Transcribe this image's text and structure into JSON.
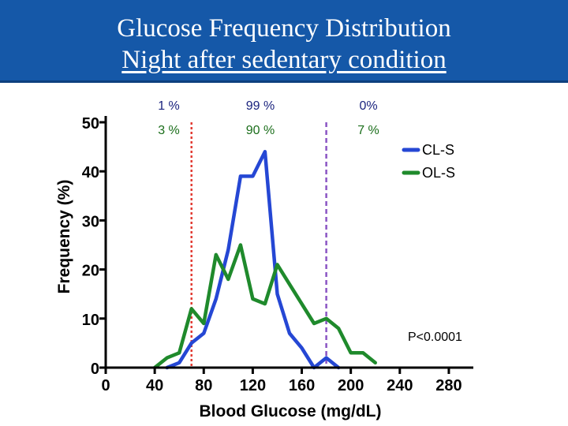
{
  "header": {
    "title": "Glucose Frequency Distribution",
    "subtitle": "Night after sedentary condition"
  },
  "colors": {
    "banner": "#1558a8",
    "cl_s": "#2547d4",
    "ol_s": "#1f8a2c",
    "threshold_low": "#e23b33",
    "threshold_high": "#8a55c4",
    "cl_s_pct_text": "#1a237e",
    "ol_s_pct_text": "#1b6e1b"
  },
  "chart_data": {
    "type": "line",
    "title": "",
    "xlabel": "Blood Glucose (mg/dL)",
    "ylabel": "Frequency (%)",
    "xlim": [
      0,
      300
    ],
    "ylim": [
      0,
      50
    ],
    "xticks": [
      "0",
      "40",
      "80",
      "120",
      "160",
      "200",
      "240",
      "280"
    ],
    "yticks": [
      "0",
      "10",
      "20",
      "30",
      "40",
      "50"
    ],
    "legend_position": "right",
    "series": [
      {
        "name": "CL-S",
        "color": "#2547d4",
        "x": [
          50,
          60,
          70,
          80,
          90,
          100,
          110,
          120,
          130,
          140,
          150,
          160,
          170,
          180,
          190
        ],
        "y": [
          0,
          1,
          5,
          7,
          14,
          24,
          39,
          39,
          44,
          15,
          7,
          4,
          0,
          2,
          0
        ]
      },
      {
        "name": "OL-S",
        "color": "#1f8a2c",
        "x": [
          40,
          50,
          60,
          70,
          80,
          90,
          100,
          110,
          120,
          130,
          140,
          150,
          160,
          170,
          180,
          190,
          200,
          210,
          220
        ],
        "y": [
          0,
          2,
          3,
          12,
          9,
          23,
          18,
          25,
          14,
          13,
          21,
          17,
          13,
          9,
          10,
          8,
          3,
          3,
          1
        ]
      }
    ],
    "thresholds": [
      {
        "x": 70,
        "color": "#e23b33",
        "style": "dotted"
      },
      {
        "x": 180,
        "color": "#8a55c4",
        "style": "dashed"
      }
    ],
    "range_percentages": {
      "cl_s": [
        "1 %",
        "99 %",
        "0%"
      ],
      "ol_s": [
        "3 %",
        "90 %",
        "7 %"
      ]
    },
    "annotation": "P<0.0001"
  }
}
